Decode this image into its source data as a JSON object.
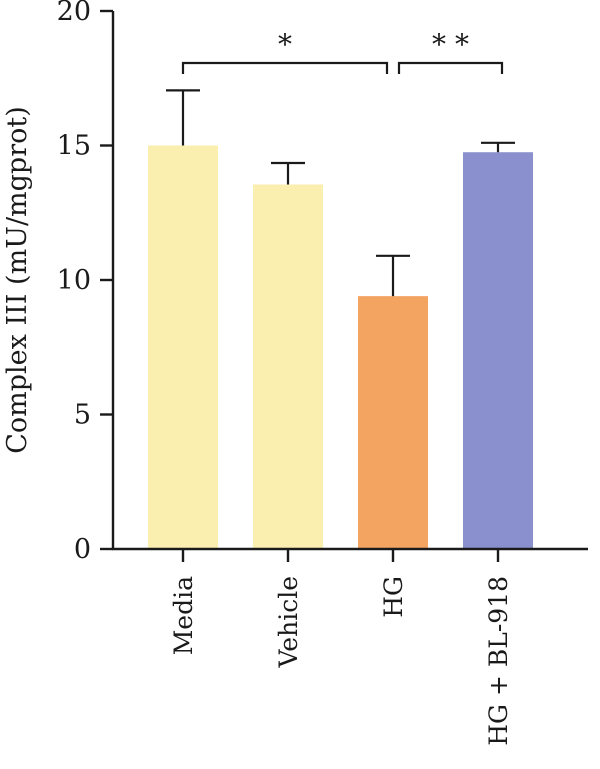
{
  "chart_data": {
    "type": "bar",
    "ylabel": "Complex III (mU/mgprot)",
    "ylim": [
      0,
      20
    ],
    "yticks": [
      0,
      5,
      10,
      15,
      20
    ],
    "categories": [
      "Media",
      "Vehicle",
      "HG",
      "HG + BL-918"
    ],
    "values": [
      15.0,
      13.55,
      9.4,
      14.75
    ],
    "errors": [
      2.05,
      0.8,
      1.5,
      0.35
    ],
    "colors": [
      "#fbefb0",
      "#fbefb0",
      "#f4a461",
      "#8a90cd"
    ],
    "significance": [
      {
        "from": 0,
        "to": 2,
        "label": "*"
      },
      {
        "from": 2,
        "to": 3,
        "label": "* *"
      }
    ],
    "grid": false,
    "legend": "none"
  }
}
